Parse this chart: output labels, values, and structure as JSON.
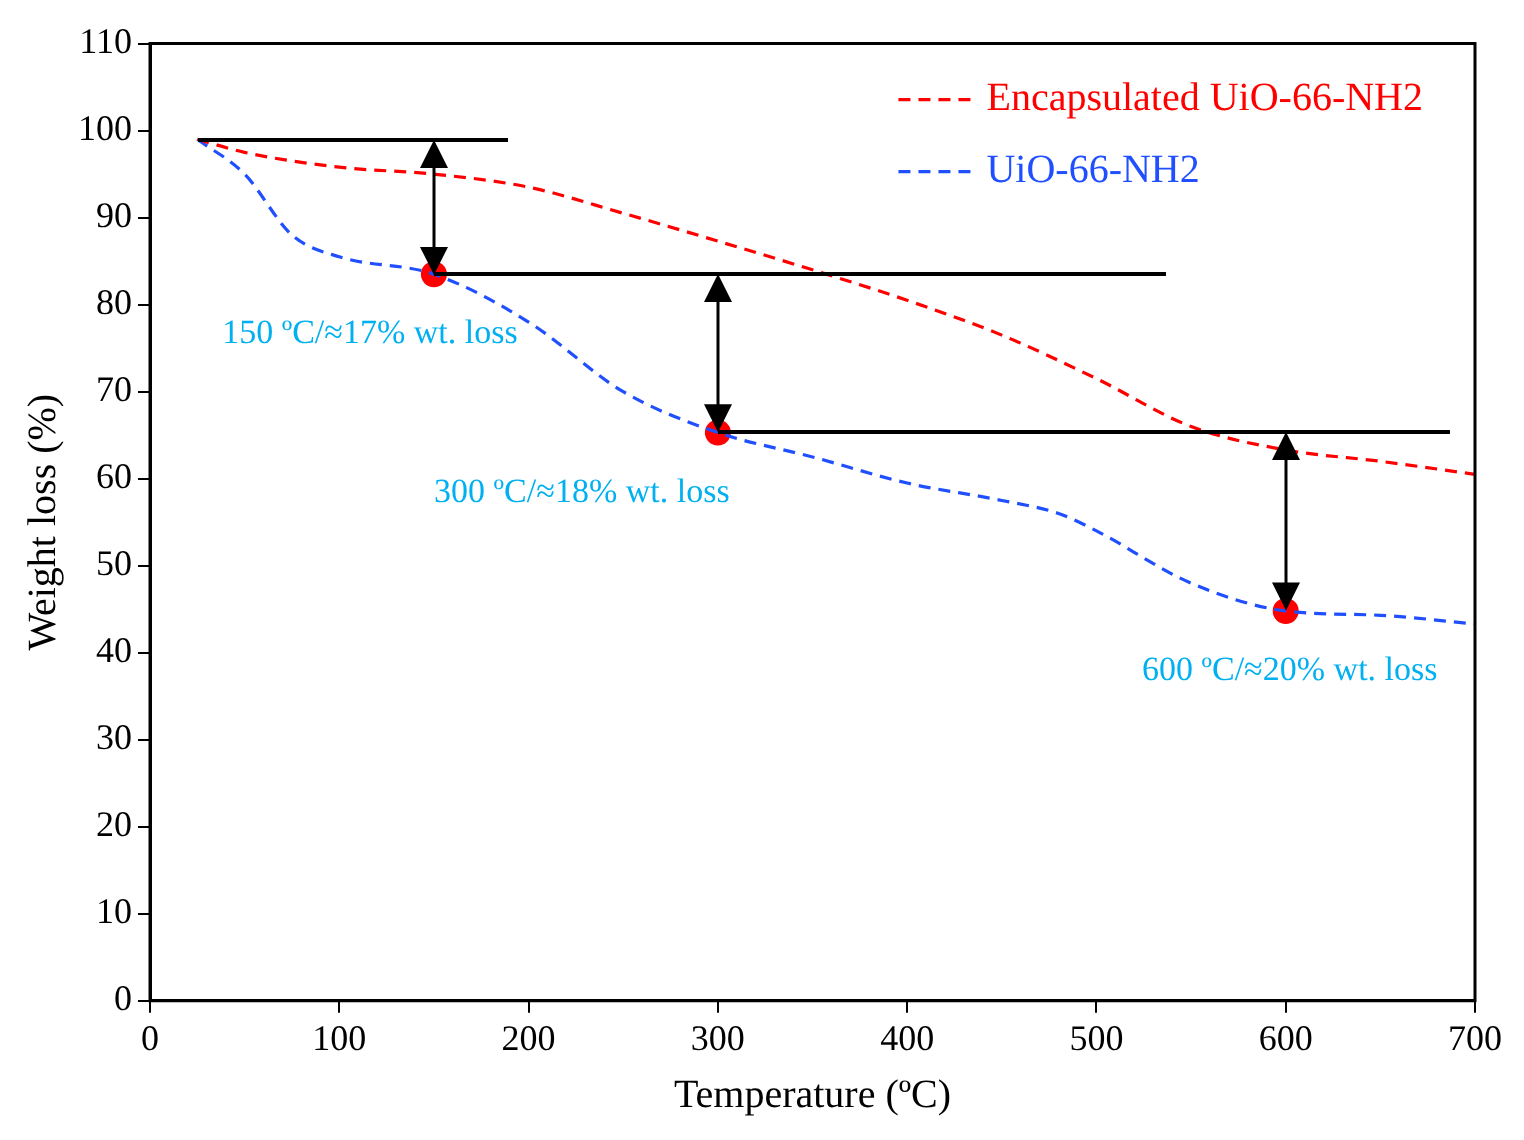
{
  "chart_data": {
    "type": "line",
    "xlabel": "Temperature (ºC)",
    "ylabel": "Weight loss (%)",
    "xlim": [
      0,
      700
    ],
    "xticks": [
      0,
      100,
      200,
      300,
      400,
      500,
      600,
      700
    ],
    "ylim": [
      0,
      110
    ],
    "yticks": [
      0,
      10,
      20,
      30,
      40,
      50,
      60,
      70,
      80,
      90,
      100,
      110
    ],
    "legend": "top right",
    "series": [
      {
        "name": "Encapsulated UiO-66-NH2",
        "color": "#ff0000",
        "line_style": "dashed",
        "marker": "none",
        "x": [
          25,
          50,
          100,
          150,
          200,
          250,
          300,
          350,
          400,
          450,
          500,
          550,
          600,
          650,
          700
        ],
        "values": [
          99,
          97.5,
          95.8,
          95,
          93.5,
          90.5,
          87.3,
          84,
          80.5,
          76.5,
          71.5,
          66,
          63.3,
          62,
          60.5
        ]
      },
      {
        "name": "UiO-66-NH2",
        "color": "#1f4fff",
        "line_style": "dashed",
        "marker": "none",
        "x": [
          25,
          50,
          75,
          100,
          150,
          200,
          250,
          300,
          350,
          400,
          450,
          480,
          500,
          550,
          600,
          650,
          700
        ],
        "values": [
          99,
          95,
          88,
          85.5,
          83.5,
          78,
          70,
          65.3,
          62.5,
          59.5,
          57.5,
          56,
          54,
          48,
          44.8,
          44.3,
          43.3
        ]
      },
      {
        "type": "scatter",
        "color": "#ff0000",
        "marker": "circle",
        "x": [
          150,
          300,
          600
        ],
        "values": [
          83.5,
          65.3,
          44.8
        ]
      }
    ],
    "annotations": [
      {
        "text": "150 ºC/≈17% wt. loss",
        "x": 150,
        "y": 83.5
      },
      {
        "text": "300 ºC/≈18% wt. loss",
        "x": 300,
        "y": 65.3
      },
      {
        "text": "600 ºC/≈20% wt. loss",
        "x": 600,
        "y": 44.8
      }
    ]
  }
}
